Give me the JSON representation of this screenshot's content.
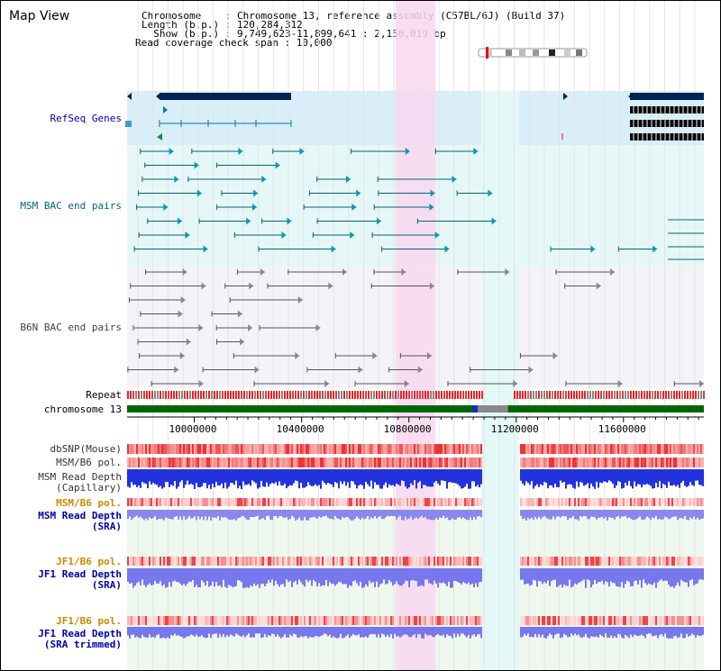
{
  "header": {
    "title": "Map View",
    "chromosome_line": "Chromosome    : Chromosome 13, reference assembly (C57BL/6J) (Build 37)",
    "length_line": "Length (b.p.) : 120,284,312",
    "show_line": "  Show (b.p.) : 9,749,623-11,899,641 : 2,150,019 bp",
    "coverage_line": "Read coverage check span : 10,000"
  },
  "tracks": {
    "refseq": "RefSeq Genes",
    "msm_bac": "MSM BAC end pairs",
    "b6n_bac": "B6N BAC end pairs",
    "repeat": "Repeat",
    "chromosome": "chromosome 13",
    "dbsnp": "dbSNP(Mouse)",
    "msm_b6_pol_1": "MSM/B6 pol.",
    "msm_read_depth_cap": "MSM Read Depth\n(Capillary)",
    "msm_b6_pol_2": "MSM/B6 pol.",
    "msm_read_depth_sra": "MSM Read Depth\n(SRA)",
    "jf1_b6_pol_1": "JF1/B6 pol.",
    "jf1_read_depth_sra": "JF1 Read Depth\n(SRA)",
    "jf1_b6_pol_2": "JF1/B6 pol.",
    "jf1_read_depth_trimmed": "JF1 Read Depth\n(SRA trimmed)"
  },
  "axis": {
    "ticks": [
      {
        "label": "10000000",
        "value": 10000000
      },
      {
        "label": "10400000",
        "value": 10400000
      },
      {
        "label": "10800000",
        "value": 10800000
      },
      {
        "label": "11200000",
        "value": 11200000
      },
      {
        "label": "11600000",
        "value": 11600000
      }
    ],
    "range_start": 9749623,
    "range_end": 11899641
  },
  "highlight": {
    "start": 10750000,
    "end": 10900000
  },
  "gap": {
    "start": 11070000,
    "end": 11210000
  },
  "colors": {
    "label_blue": "#0000aa",
    "label_orange": "#cc8800",
    "refseq_bg": "#d8eef8",
    "msm_bg": "#e6f7f7",
    "b6n_bg": "#f4f4f8",
    "highlight": "#f8d8f0",
    "chromosome_bar": "#006600",
    "gene_dark": "#002255"
  }
}
